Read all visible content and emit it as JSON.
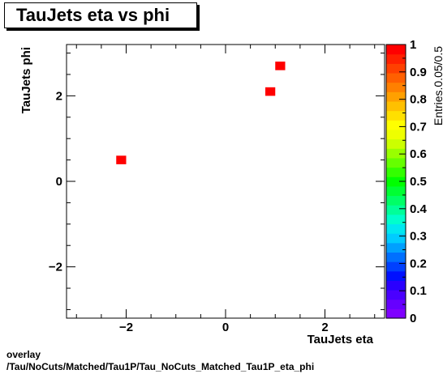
{
  "title": "TauJets eta vs phi",
  "footer": {
    "line1": "overlay",
    "line2": "/Tau/NoCuts/Matched/Tau1P/Tau_NoCuts_Matched_Tau1P_eta_phi"
  },
  "chart_data": {
    "type": "heatmap",
    "title": "TauJets eta vs phi",
    "xlabel": "TauJets eta",
    "ylabel": "TauJets phi",
    "zlabel": "Entries.0.05/0.5",
    "xlim": [
      -3.2,
      3.2
    ],
    "ylim": [
      -3.2,
      3.2
    ],
    "zlim": [
      0,
      1
    ],
    "x_ticks": [
      -2,
      0,
      2
    ],
    "x_tick_labels": [
      "−2",
      "0",
      "2"
    ],
    "y_ticks": [
      -2,
      0,
      2
    ],
    "y_tick_labels": [
      "−2",
      "0",
      "2"
    ],
    "z_ticks": [
      0,
      0.1,
      0.2,
      0.3,
      0.4,
      0.5,
      0.6,
      0.7,
      0.8,
      0.9,
      1
    ],
    "z_tick_labels": [
      "0",
      "0.1",
      "0.2",
      "0.3",
      "0.4",
      "0.5",
      "0.6",
      "0.7",
      "0.8",
      "0.9",
      "1"
    ],
    "cell_size": [
      0.2,
      0.2
    ],
    "cells": [
      {
        "x": -2.1,
        "y": 0.5,
        "z": 1
      },
      {
        "x": 0.9,
        "y": 2.1,
        "z": 1
      },
      {
        "x": 1.1,
        "y": 2.7,
        "z": 1
      }
    ],
    "palette": [
      "#7f00ff",
      "#6600ff",
      "#4a00ff",
      "#2a00ff",
      "#0010ff",
      "#0040ff",
      "#0070ff",
      "#00a0ff",
      "#00ccff",
      "#00e8f0",
      "#00ffcc",
      "#00ff99",
      "#00ff66",
      "#00ff33",
      "#00ff00",
      "#33ff00",
      "#66ff00",
      "#99ff00",
      "#ccff00",
      "#eeff00",
      "#ffff00",
      "#ffe000",
      "#ffc000",
      "#ffa000",
      "#ff8000",
      "#ff6000",
      "#ff4000",
      "#ff2000",
      "#ff0000"
    ],
    "grid": false,
    "legend": "none"
  }
}
